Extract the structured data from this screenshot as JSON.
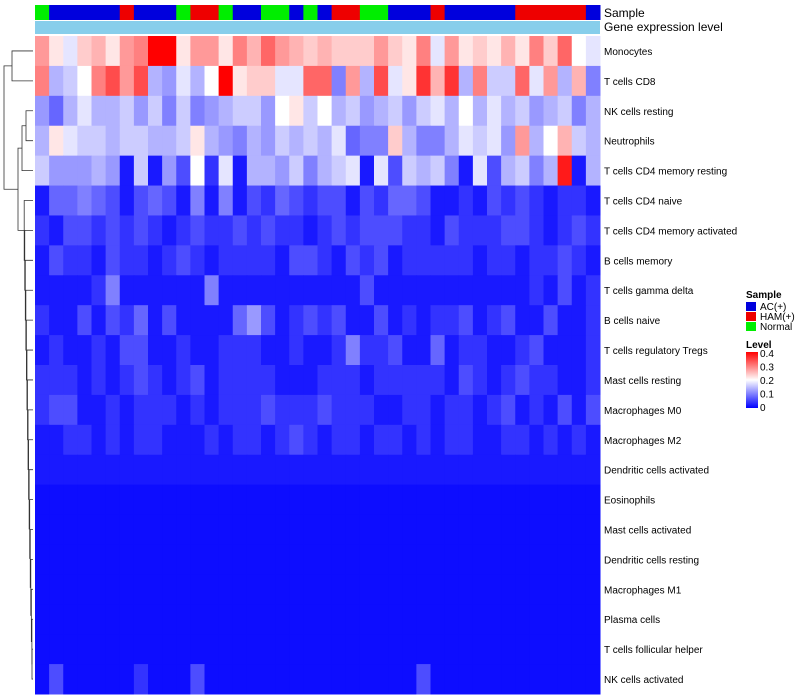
{
  "chart_data": {
    "type": "heatmap",
    "title": "",
    "annotation_tracks": [
      {
        "name": "Sample",
        "label": "Sample"
      },
      {
        "name": "Gene expression level",
        "label": "Gene expression level"
      }
    ],
    "sample_groups": [
      "N",
      "A",
      "A",
      "A",
      "A",
      "A",
      "H",
      "A",
      "A",
      "A",
      "N",
      "H",
      "H",
      "N",
      "A",
      "A",
      "N",
      "N",
      "A",
      "N",
      "A",
      "H",
      "H",
      "N",
      "N",
      "A",
      "A",
      "A",
      "H",
      "A",
      "A",
      "A",
      "A",
      "A",
      "H",
      "H",
      "H",
      "H",
      "H",
      "A"
    ],
    "sample_group_colors": {
      "A": "#0000dd",
      "H": "#ee0000",
      "N": "#00ee00"
    },
    "gene_expression_color": "#87ceeb",
    "rows": [
      "Monocytes",
      "T cells CD8",
      "NK cells resting",
      "Neutrophils",
      "T cells CD4 memory resting",
      "T cells CD4 naive",
      "T cells CD4 memory activated",
      "B cells memory",
      "T cells gamma delta",
      "B cells naive",
      "T cells regulatory  Tregs",
      "Mast cells resting",
      "Macrophages M0",
      "Macrophages M2",
      "Dendritic cells activated",
      "Eosinophils",
      "Mast cells activated",
      "Dendritic cells resting",
      "Macrophages M1",
      "Plasma cells",
      "T cells follicular helper",
      "NK cells activated"
    ],
    "values": [
      [
        0.28,
        0.22,
        0.18,
        0.24,
        0.26,
        0.22,
        0.28,
        0.3,
        0.4,
        0.4,
        0.22,
        0.28,
        0.28,
        0.22,
        0.3,
        0.26,
        0.32,
        0.28,
        0.26,
        0.24,
        0.26,
        0.24,
        0.24,
        0.24,
        0.28,
        0.24,
        0.22,
        0.3,
        0.18,
        0.28,
        0.22,
        0.24,
        0.22,
        0.26,
        0.22,
        0.3,
        0.24,
        0.32,
        0.2,
        0.18
      ],
      [
        0.3,
        0.14,
        0.16,
        0.2,
        0.3,
        0.34,
        0.28,
        0.34,
        0.14,
        0.12,
        0.18,
        0.14,
        0.2,
        0.4,
        0.22,
        0.24,
        0.24,
        0.18,
        0.18,
        0.32,
        0.32,
        0.1,
        0.28,
        0.14,
        0.34,
        0.18,
        0.22,
        0.36,
        0.26,
        0.36,
        0.14,
        0.3,
        0.16,
        0.16,
        0.32,
        0.18,
        0.28,
        0.14,
        0.26,
        0.1
      ],
      [
        0.12,
        0.08,
        0.14,
        0.18,
        0.14,
        0.14,
        0.16,
        0.12,
        0.16,
        0.1,
        0.16,
        0.1,
        0.12,
        0.14,
        0.16,
        0.16,
        0.12,
        0.2,
        0.22,
        0.16,
        0.2,
        0.14,
        0.16,
        0.12,
        0.14,
        0.16,
        0.12,
        0.16,
        0.18,
        0.14,
        0.2,
        0.14,
        0.18,
        0.14,
        0.16,
        0.12,
        0.14,
        0.16,
        0.1,
        0.14
      ],
      [
        0.14,
        0.22,
        0.18,
        0.16,
        0.16,
        0.14,
        0.16,
        0.16,
        0.14,
        0.14,
        0.16,
        0.22,
        0.14,
        0.12,
        0.1,
        0.14,
        0.12,
        0.16,
        0.14,
        0.16,
        0.14,
        0.18,
        0.08,
        0.1,
        0.1,
        0.24,
        0.14,
        0.1,
        0.1,
        0.14,
        0.18,
        0.16,
        0.18,
        0.12,
        0.28,
        0.14,
        0.2,
        0.26,
        0.16,
        0.14
      ],
      [
        0.16,
        0.12,
        0.12,
        0.12,
        0.14,
        0.12,
        0.02,
        0.16,
        0.02,
        0.12,
        0.06,
        0.2,
        0.04,
        0.18,
        0.02,
        0.14,
        0.14,
        0.12,
        0.16,
        0.1,
        0.14,
        0.16,
        0.18,
        0.02,
        0.18,
        0.06,
        0.16,
        0.14,
        0.16,
        0.1,
        0.02,
        0.18,
        0.06,
        0.14,
        0.16,
        0.1,
        0.14,
        0.38,
        0.02,
        0.14
      ],
      [
        0.02,
        0.08,
        0.08,
        0.1,
        0.08,
        0.06,
        0.02,
        0.06,
        0.08,
        0.06,
        0.02,
        0.1,
        0.02,
        0.1,
        0.02,
        0.06,
        0.04,
        0.08,
        0.06,
        0.04,
        0.06,
        0.06,
        0.02,
        0.06,
        0.04,
        0.08,
        0.08,
        0.06,
        0.02,
        0.02,
        0.04,
        0.02,
        0.06,
        0.04,
        0.06,
        0.04,
        0.02,
        0.04,
        0.04,
        0.02
      ],
      [
        0.04,
        0.02,
        0.06,
        0.06,
        0.04,
        0.06,
        0.04,
        0.06,
        0.04,
        0.02,
        0.04,
        0.06,
        0.04,
        0.04,
        0.06,
        0.04,
        0.06,
        0.04,
        0.04,
        0.02,
        0.04,
        0.06,
        0.04,
        0.06,
        0.06,
        0.06,
        0.04,
        0.04,
        0.02,
        0.06,
        0.04,
        0.04,
        0.04,
        0.06,
        0.06,
        0.04,
        0.02,
        0.04,
        0.06,
        0.04
      ],
      [
        0.02,
        0.06,
        0.04,
        0.04,
        0.02,
        0.06,
        0.04,
        0.04,
        0.02,
        0.04,
        0.06,
        0.04,
        0.02,
        0.04,
        0.04,
        0.04,
        0.04,
        0.02,
        0.06,
        0.06,
        0.04,
        0.02,
        0.06,
        0.04,
        0.06,
        0.02,
        0.04,
        0.04,
        0.04,
        0.04,
        0.04,
        0.02,
        0.04,
        0.04,
        0.02,
        0.04,
        0.04,
        0.06,
        0.04,
        0.02
      ],
      [
        0.02,
        0.02,
        0.02,
        0.02,
        0.04,
        0.1,
        0.02,
        0.02,
        0.02,
        0.02,
        0.02,
        0.02,
        0.1,
        0.02,
        0.02,
        0.02,
        0.02,
        0.02,
        0.02,
        0.02,
        0.02,
        0.02,
        0.02,
        0.06,
        0.02,
        0.02,
        0.02,
        0.02,
        0.02,
        0.02,
        0.02,
        0.02,
        0.02,
        0.02,
        0.02,
        0.04,
        0.02,
        0.06,
        0.02,
        0.04
      ],
      [
        0.04,
        0.02,
        0.02,
        0.06,
        0.02,
        0.06,
        0.04,
        0.08,
        0.02,
        0.06,
        0.02,
        0.02,
        0.02,
        0.02,
        0.08,
        0.12,
        0.06,
        0.02,
        0.04,
        0.06,
        0.04,
        0.06,
        0.02,
        0.02,
        0.06,
        0.02,
        0.04,
        0.02,
        0.04,
        0.04,
        0.06,
        0.02,
        0.04,
        0.06,
        0.02,
        0.02,
        0.06,
        0.02,
        0.02,
        0.04
      ],
      [
        0.02,
        0.04,
        0.02,
        0.02,
        0.04,
        0.02,
        0.06,
        0.06,
        0.02,
        0.02,
        0.04,
        0.02,
        0.02,
        0.04,
        0.04,
        0.04,
        0.02,
        0.02,
        0.04,
        0.02,
        0.02,
        0.04,
        0.1,
        0.04,
        0.04,
        0.06,
        0.02,
        0.02,
        0.08,
        0.02,
        0.04,
        0.04,
        0.02,
        0.02,
        0.04,
        0.06,
        0.02,
        0.02,
        0.02,
        0.04
      ],
      [
        0.04,
        0.04,
        0.04,
        0.02,
        0.04,
        0.02,
        0.04,
        0.06,
        0.04,
        0.02,
        0.04,
        0.06,
        0.02,
        0.04,
        0.04,
        0.04,
        0.04,
        0.02,
        0.02,
        0.02,
        0.04,
        0.04,
        0.04,
        0.02,
        0.04,
        0.04,
        0.04,
        0.04,
        0.04,
        0.02,
        0.06,
        0.04,
        0.02,
        0.04,
        0.06,
        0.04,
        0.04,
        0.02,
        0.02,
        0.04
      ],
      [
        0.04,
        0.06,
        0.06,
        0.02,
        0.02,
        0.04,
        0.02,
        0.04,
        0.04,
        0.04,
        0.02,
        0.04,
        0.02,
        0.04,
        0.04,
        0.04,
        0.06,
        0.04,
        0.04,
        0.04,
        0.06,
        0.04,
        0.04,
        0.04,
        0.02,
        0.02,
        0.04,
        0.04,
        0.02,
        0.04,
        0.04,
        0.02,
        0.04,
        0.06,
        0.02,
        0.04,
        0.02,
        0.06,
        0.02,
        0.06
      ],
      [
        0.02,
        0.02,
        0.04,
        0.04,
        0.02,
        0.04,
        0.02,
        0.04,
        0.04,
        0.02,
        0.02,
        0.02,
        0.04,
        0.02,
        0.04,
        0.04,
        0.02,
        0.04,
        0.06,
        0.04,
        0.02,
        0.04,
        0.04,
        0.02,
        0.04,
        0.04,
        0.02,
        0.04,
        0.02,
        0.04,
        0.04,
        0.02,
        0.02,
        0.04,
        0.04,
        0.02,
        0.04,
        0.02,
        0.04,
        0.02
      ],
      [
        0.02,
        0.02,
        0.02,
        0.02,
        0.02,
        0.02,
        0.02,
        0.02,
        0.02,
        0.02,
        0.02,
        0.02,
        0.02,
        0.02,
        0.02,
        0.02,
        0.02,
        0.02,
        0.02,
        0.02,
        0.02,
        0.02,
        0.02,
        0.02,
        0.02,
        0.02,
        0.02,
        0.02,
        0.02,
        0.02,
        0.02,
        0.02,
        0.02,
        0.02,
        0.02,
        0.02,
        0.02,
        0.02,
        0.02,
        0.02
      ],
      [
        0.01,
        0.01,
        0.01,
        0.01,
        0.01,
        0.01,
        0.01,
        0.01,
        0.01,
        0.01,
        0.01,
        0.01,
        0.01,
        0.01,
        0.01,
        0.01,
        0.01,
        0.01,
        0.01,
        0.01,
        0.01,
        0.01,
        0.01,
        0.01,
        0.01,
        0.01,
        0.01,
        0.01,
        0.01,
        0.01,
        0.01,
        0.01,
        0.01,
        0.01,
        0.01,
        0.01,
        0.01,
        0.01,
        0.01,
        0.01
      ],
      [
        0.01,
        0.01,
        0.01,
        0.01,
        0.01,
        0.01,
        0.01,
        0.01,
        0.01,
        0.01,
        0.01,
        0.01,
        0.01,
        0.01,
        0.01,
        0.01,
        0.01,
        0.01,
        0.01,
        0.01,
        0.01,
        0.01,
        0.01,
        0.01,
        0.01,
        0.01,
        0.01,
        0.01,
        0.01,
        0.01,
        0.01,
        0.01,
        0.01,
        0.01,
        0.01,
        0.01,
        0.01,
        0.01,
        0.01,
        0.01
      ],
      [
        0.01,
        0.01,
        0.01,
        0.01,
        0.01,
        0.01,
        0.01,
        0.01,
        0.01,
        0.01,
        0.01,
        0.01,
        0.01,
        0.01,
        0.01,
        0.01,
        0.01,
        0.01,
        0.01,
        0.01,
        0.01,
        0.01,
        0.01,
        0.01,
        0.01,
        0.01,
        0.01,
        0.01,
        0.01,
        0.01,
        0.01,
        0.01,
        0.01,
        0.01,
        0.01,
        0.01,
        0.01,
        0.01,
        0.01,
        0.01
      ],
      [
        0.01,
        0.01,
        0.01,
        0.01,
        0.01,
        0.01,
        0.01,
        0.01,
        0.01,
        0.01,
        0.01,
        0.01,
        0.01,
        0.01,
        0.01,
        0.01,
        0.01,
        0.01,
        0.01,
        0.01,
        0.01,
        0.01,
        0.01,
        0.01,
        0.01,
        0.01,
        0.01,
        0.01,
        0.01,
        0.01,
        0.01,
        0.01,
        0.01,
        0.01,
        0.01,
        0.01,
        0.01,
        0.01,
        0.01,
        0.01
      ],
      [
        0.01,
        0.01,
        0.01,
        0.01,
        0.01,
        0.01,
        0.01,
        0.01,
        0.01,
        0.01,
        0.01,
        0.01,
        0.01,
        0.01,
        0.01,
        0.01,
        0.01,
        0.01,
        0.01,
        0.01,
        0.01,
        0.01,
        0.01,
        0.01,
        0.01,
        0.01,
        0.01,
        0.01,
        0.01,
        0.01,
        0.01,
        0.01,
        0.01,
        0.01,
        0.01,
        0.01,
        0.01,
        0.01,
        0.01,
        0.01
      ],
      [
        0.01,
        0.01,
        0.01,
        0.01,
        0.01,
        0.01,
        0.01,
        0.01,
        0.01,
        0.01,
        0.01,
        0.01,
        0.01,
        0.01,
        0.01,
        0.01,
        0.01,
        0.01,
        0.01,
        0.01,
        0.01,
        0.01,
        0.01,
        0.01,
        0.01,
        0.01,
        0.01,
        0.01,
        0.01,
        0.01,
        0.01,
        0.01,
        0.01,
        0.01,
        0.01,
        0.01,
        0.01,
        0.01,
        0.01,
        0.01
      ],
      [
        0.01,
        0.06,
        0.01,
        0.01,
        0.01,
        0.01,
        0.01,
        0.04,
        0.01,
        0.01,
        0.01,
        0.06,
        0.01,
        0.01,
        0.01,
        0.01,
        0.01,
        0.01,
        0.01,
        0.01,
        0.01,
        0.01,
        0.01,
        0.01,
        0.01,
        0.01,
        0.01,
        0.06,
        0.01,
        0.01,
        0.01,
        0.01,
        0.01,
        0.01,
        0.01,
        0.01,
        0.01,
        0.01,
        0.01,
        0.01
      ]
    ],
    "color_scale": {
      "min": 0,
      "max": 0.4,
      "stops": [
        {
          "value": 0,
          "color": "#0000ff"
        },
        {
          "value": 0.2,
          "color": "#ffffff"
        },
        {
          "value": 0.4,
          "color": "#ff0000"
        }
      ]
    },
    "legend": {
      "sample_title": "Sample",
      "sample_entries": [
        {
          "label": "AC(+)",
          "color": "#0000dd"
        },
        {
          "label": "HAM(+)",
          "color": "#ee0000"
        },
        {
          "label": "Normal",
          "color": "#00ee00"
        }
      ],
      "level_title": "Level",
      "level_ticks": [
        "0.4",
        "0.3",
        "0.2",
        "0.1",
        "0"
      ],
      "placement": "right"
    },
    "dendrogram": {
      "side": "left",
      "leaves": 22
    }
  }
}
